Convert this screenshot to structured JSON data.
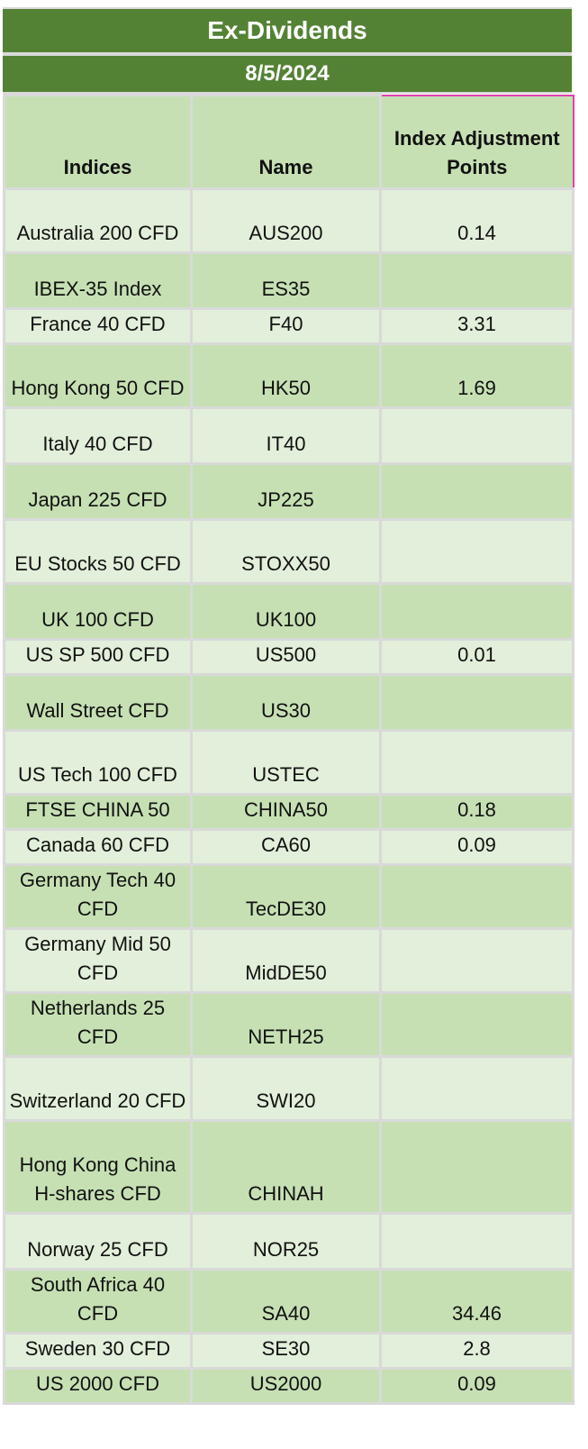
{
  "title": "Ex-Dividends",
  "date": "8/5/2024",
  "headers": {
    "indices": "Indices",
    "name": "Name",
    "points": "Index Adjustment Points"
  },
  "rows": [
    {
      "index": "Australia 200 CFD",
      "name": "AUS200",
      "points": "0.14"
    },
    {
      "index": "IBEX-35 Index",
      "name": "ES35",
      "points": ""
    },
    {
      "index": "France 40 CFD",
      "name": "F40",
      "points": "3.31"
    },
    {
      "index": "Hong Kong 50 CFD",
      "name": "HK50",
      "points": "1.69"
    },
    {
      "index": "Italy 40 CFD",
      "name": "IT40",
      "points": ""
    },
    {
      "index": "Japan 225 CFD",
      "name": "JP225",
      "points": ""
    },
    {
      "index": "EU Stocks 50 CFD",
      "name": "STOXX50",
      "points": ""
    },
    {
      "index": "UK 100 CFD",
      "name": "UK100",
      "points": ""
    },
    {
      "index": "US SP 500 CFD",
      "name": "US500",
      "points": "0.01"
    },
    {
      "index": "Wall Street CFD",
      "name": "US30",
      "points": ""
    },
    {
      "index": "US Tech 100 CFD",
      "name": "USTEC",
      "points": ""
    },
    {
      "index": "FTSE CHINA 50",
      "name": "CHINA50",
      "points": "0.18"
    },
    {
      "index": "Canada 60 CFD",
      "name": "CA60",
      "points": "0.09"
    },
    {
      "index": "Germany Tech 40 CFD",
      "name": "TecDE30",
      "points": ""
    },
    {
      "index": "Germany Mid 50 CFD",
      "name": "MidDE50",
      "points": ""
    },
    {
      "index": "Netherlands 25 CFD",
      "name": "NETH25",
      "points": ""
    },
    {
      "index": "Switzerland 20 CFD",
      "name": "SWI20",
      "points": ""
    },
    {
      "index": "Hong Kong China H-shares CFD",
      "name": "CHINAH",
      "points": ""
    },
    {
      "index": "Norway 25 CFD",
      "name": "NOR25",
      "points": ""
    },
    {
      "index": "South Africa 40 CFD",
      "name": "SA40",
      "points": "34.46"
    },
    {
      "index": "Sweden 30 CFD",
      "name": "SE30",
      "points": "2.8"
    },
    {
      "index": "US 2000 CFD",
      "name": "US2000",
      "points": "0.09"
    }
  ]
}
